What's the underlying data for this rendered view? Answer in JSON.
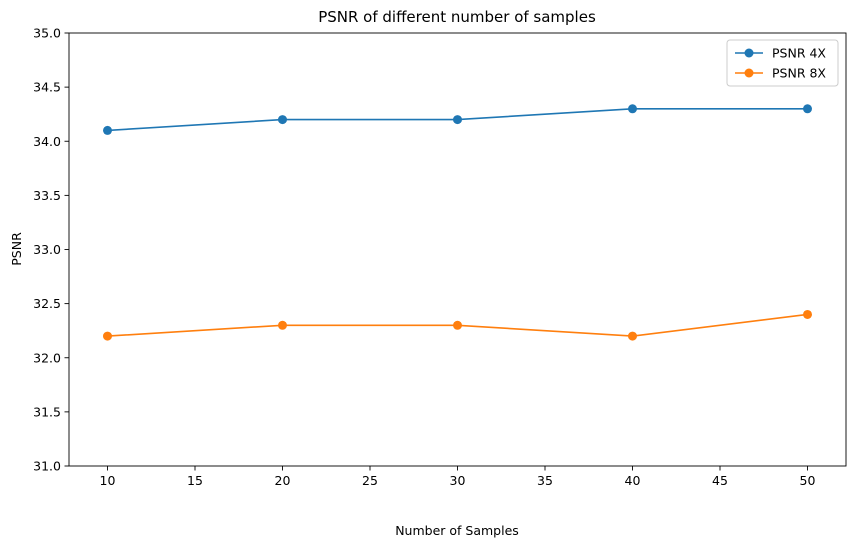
{
  "chart_data": {
    "type": "line",
    "title": "PSNR of different number of samples",
    "xlabel": "Number of Samples",
    "ylabel": "PSNR",
    "x": [
      10,
      20,
      30,
      40,
      50
    ],
    "xlim": [
      7.8,
      52.2
    ],
    "ylim": [
      31.0,
      35.0
    ],
    "xticks": [
      10,
      15,
      20,
      25,
      30,
      35,
      40,
      45,
      50
    ],
    "xtick_labels": [
      "10",
      "15",
      "20",
      "25",
      "30",
      "35",
      "40",
      "45",
      "50"
    ],
    "yticks": [
      31.0,
      31.5,
      32.0,
      32.5,
      33.0,
      33.5,
      34.0,
      34.5,
      35.0
    ],
    "ytick_labels": [
      "31.0",
      "31.5",
      "32.0",
      "32.5",
      "33.0",
      "33.5",
      "34.0",
      "34.5",
      "35.0"
    ],
    "grid": false,
    "legend_position": "top-right",
    "series": [
      {
        "name": "PSNR 4X",
        "color": "#1f77b4",
        "marker": "circle",
        "values": [
          34.1,
          34.2,
          34.2,
          34.3,
          34.3
        ]
      },
      {
        "name": "PSNR 8X",
        "color": "#ff7f0e",
        "marker": "circle",
        "values": [
          32.2,
          32.3,
          32.3,
          32.2,
          32.4
        ]
      }
    ]
  }
}
